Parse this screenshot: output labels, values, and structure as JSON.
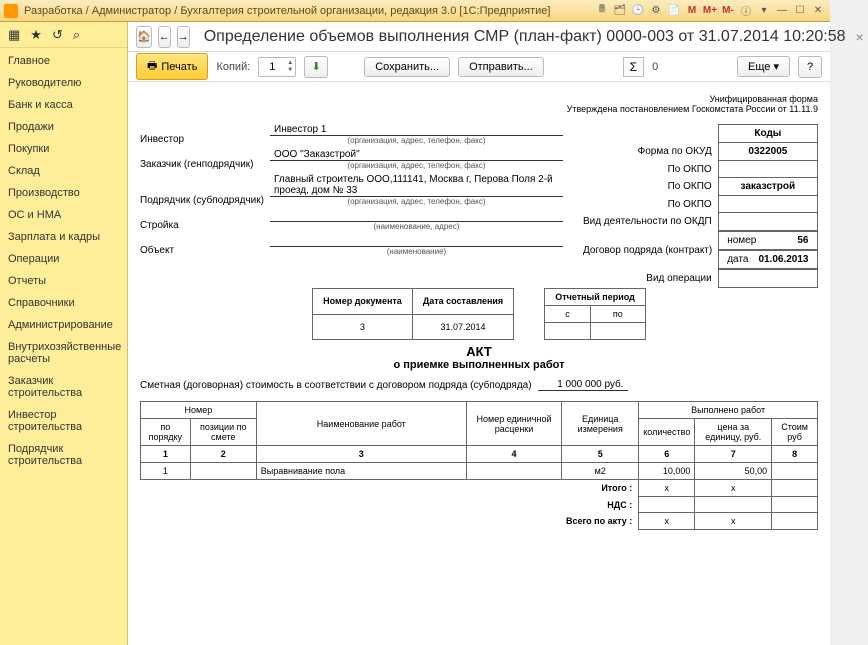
{
  "window": {
    "title": "Разработка / Администратор / Бухгалтерия строительной организации, редакция 3.0  [1С:Предприятие]"
  },
  "sidebar": {
    "items": [
      "Главное",
      "Руководителю",
      "Банк и касса",
      "Продажи",
      "Покупки",
      "Склад",
      "Производство",
      "ОС и НМА",
      "Зарплата и кадры",
      "Операции",
      "Отчеты",
      "Справочники",
      "Администрирование",
      "Внутрихозяйственные расчеты",
      "Заказчик строительства",
      "Инвестор строительства",
      "Подрядчик строительства"
    ]
  },
  "page": {
    "title": "Определение объемов выполнения СМР (план-факт) 0000-003 от 31.07.2014 10:20:58"
  },
  "toolbar": {
    "print": "Печать",
    "copies_label": "Копий:",
    "copies": "1",
    "save": "Сохранить...",
    "send": "Отправить...",
    "sigma_val": "0",
    "more": "Еще"
  },
  "form": {
    "header1": "Унифицированная форма",
    "header2": "Утверждена постановлением Госкомстата России от 11.11.9",
    "codes_title": "Коды",
    "okud_label": "Форма по ОКУД",
    "okud": "0322005",
    "okpo_label": "По ОКПО",
    "okpo1": "",
    "okpo2": "заказстрой",
    "okpo3": "",
    "okdp_label": "Вид деятельности по ОКДП",
    "contract_label": "Договор подряда (контракт)",
    "contract_num_label": "номер",
    "contract_num": "56",
    "contract_date_label": "дата",
    "contract_date": "01.06.2013",
    "optype_label": "Вид операции",
    "investor_label": "Инвестор",
    "investor": "Инвестор 1",
    "note_org": "(организация, адрес, телефон, факс)",
    "customer_label": "Заказчик (генподрядчик)",
    "customer": "ООО \"Заказстрой\"",
    "contractor_label": "Подрядчик (субподрядчик)",
    "contractor": "Главный строитель ООО,111141, Москва г, Перова Поля 2-й проезд, дом № 33",
    "site_label": "Стройка",
    "note_name_addr": "(наименование, адрес)",
    "object_label": "Объект",
    "note_name": "(наименование)",
    "docnum_h": "Номер документа",
    "docdate_h": "Дата составления",
    "docnum": "3",
    "docdate": "31.07.2014",
    "period_h": "Отчетный период",
    "period_from": "с",
    "period_to": "по",
    "akt": "АКТ",
    "akt_sub": "о приемке выполненных работ",
    "estimate_text": "Сметная (договорная) стоимость в соответствии с договором подряда (субподряда)",
    "estimate_val": "1 000 000 руб."
  },
  "table": {
    "h_num": "Номер",
    "h_order": "по порядку",
    "h_pos": "позиции по смете",
    "h_work": "Наименование работ",
    "h_unitprice": "Номер единичной расценки",
    "h_unit": "Единица измерения",
    "h_done": "Выполнено работ",
    "h_qty": "количество",
    "h_price": "цена за единицу, руб.",
    "h_cost": "Стоим руб",
    "cols": [
      "1",
      "2",
      "3",
      "4",
      "5",
      "6",
      "7",
      "8"
    ],
    "row": {
      "n": "1",
      "pos": "",
      "work": "Выравнивание пола",
      "up": "",
      "unit": "м2",
      "qty": "10,000",
      "price": "50,00",
      "cost": ""
    },
    "totals": {
      "itogo": "Итого :",
      "nds": "НДС :",
      "all": "Всего по акту :"
    }
  }
}
